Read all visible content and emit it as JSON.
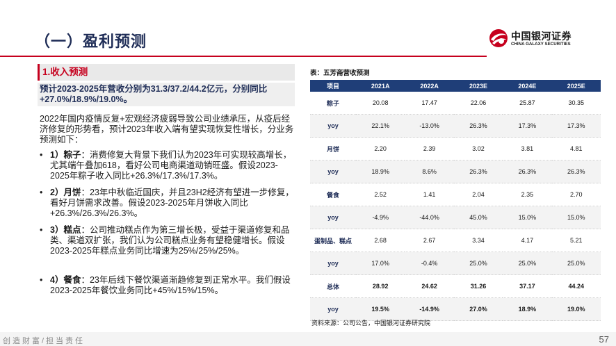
{
  "page": {
    "title": "（一）盈利预测",
    "section_label": "1.收入预测",
    "summary": "预计2023-2025年营收分别为31.3/37.2/44.2亿元，分别同比+27.0%/18.9%/19.0%。",
    "intro": "2022年国内疫情反复+宏观经济疲弱导致公司业绩承压，从疫后经济修复的形势看，预计2023年收入端有望实现恢复性增长，分业务预测如下：",
    "bullets": [
      {
        "bullet_char": "•",
        "head": "1）粽子",
        "text": "：消费修复大背景下我们认为2023年可实现较高增长，尤其端午叠加618，看好公司电商渠道动销旺盛。假设2023-2025年粽子收入同比+26.3%/17.3%/17.3%。"
      },
      {
        "bullet_char": "•",
        "head": "2）月饼",
        "text": "：23年中秋临近国庆，并且23H2经济有望进一步修复，看好月饼需求改善。假设2023-2025年月饼收入同比+26.3%/26.3%/26.3%。"
      },
      {
        "bullet_char": "•",
        "head": "3）糕点",
        "text": "：公司推动糕点作为第三增长极，受益于渠道修复和品类、渠道双扩张，我们认为公司糕点业务有望稳健增长。假设2023-2025年糕点业务同比增速为25%/25%/25%。"
      },
      {
        "bullet_char": "•",
        "head": "4）餐食",
        "text": "：23年后线下餐饮渠道渐趋修复到正常水平。我们假设2023-2025年餐饮业务同比+45%/15%/15%。"
      }
    ],
    "footer": "创造财富/担当责任",
    "page_number": "57"
  },
  "logo": {
    "cn": "中国银河证券",
    "en": "CHINA GALAXY SECURITIES",
    "color": "#c6001e"
  },
  "table": {
    "caption": "表：五芳斋营收预测",
    "headers": [
      "项目",
      "2021A",
      "2022A",
      "2023E",
      "2024E",
      "2025E"
    ],
    "rows": [
      [
        "粽子",
        "20.08",
        "17.47",
        "22.06",
        "25.87",
        "30.35"
      ],
      [
        "yoy",
        "22.1%",
        "-13.0%",
        "26.3%",
        "17.3%",
        "17.3%"
      ],
      [
        "月饼",
        "2.20",
        "2.39",
        "3.02",
        "3.81",
        "4.81"
      ],
      [
        "yoy",
        "18.9%",
        "8.6%",
        "26.3%",
        "26.3%",
        "26.3%"
      ],
      [
        "餐食",
        "2.52",
        "1.41",
        "2.04",
        "2.35",
        "2.70"
      ],
      [
        "yoy",
        "-4.9%",
        "-44.0%",
        "45.0%",
        "15.0%",
        "15.0%"
      ],
      [
        "蛋制品、糕点",
        "2.68",
        "2.67",
        "3.34",
        "4.17",
        "5.21"
      ],
      [
        "yoy",
        "17.0%",
        "-0.4%",
        "25.0%",
        "25.0%",
        "25.0%"
      ],
      [
        "总体",
        "28.92",
        "24.62",
        "31.26",
        "37.17",
        "44.24"
      ],
      [
        "yoy",
        "19.5%",
        "-14.9%",
        "27.0%",
        "18.9%",
        "19.0%"
      ]
    ],
    "source": "资料来源：公司公告，中国银河证券研究院"
  },
  "colors": {
    "title": "#1f2d57",
    "accent": "#c6001e",
    "table_header": "#1f3e78"
  }
}
